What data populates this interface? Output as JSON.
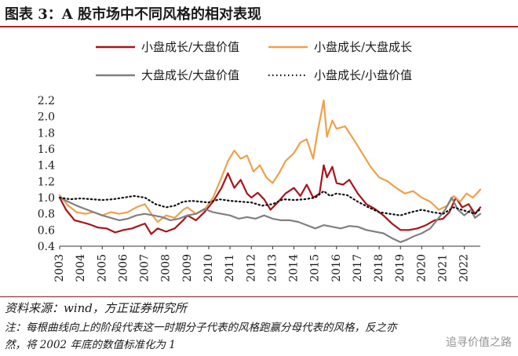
{
  "header": {
    "title": "图表 3：A 股市场中不同风格的相对表现"
  },
  "footer": {
    "source": "资料来源：wind，方正证券研究所",
    "note": "注：每根曲线向上的阶段代表这一时期分子代表的风格跑赢分母代表的风格，反之亦然，将 2002 年底的数值标准化为 1",
    "watermark": "追寻价值之路"
  },
  "chart_data": {
    "type": "line",
    "ylim": [
      0.4,
      2.2
    ],
    "yticks": [
      "2.2",
      "2.0",
      "1.8",
      "1.6",
      "1.4",
      "1.2",
      "1.0",
      "0.8",
      "0.6",
      "0.4"
    ],
    "xticks": [
      "2003",
      "2004",
      "2005",
      "2006",
      "2007",
      "2008",
      "2009",
      "2010",
      "2011",
      "2012",
      "2013",
      "2014",
      "2015",
      "2016",
      "2017",
      "2018",
      "2019",
      "2020",
      "2021",
      "2022"
    ],
    "x_start": 2003.0,
    "x_end": 2022.75,
    "legend_position": "top",
    "series": [
      {
        "name": "小盘成长/大盘价值",
        "color": "#a8141c",
        "style": "solid",
        "points": [
          [
            2003.0,
            1.0
          ],
          [
            2003.3,
            0.85
          ],
          [
            2003.7,
            0.72
          ],
          [
            2004.0,
            0.7
          ],
          [
            2004.4,
            0.67
          ],
          [
            2004.8,
            0.63
          ],
          [
            2005.2,
            0.62
          ],
          [
            2005.6,
            0.57
          ],
          [
            2006.0,
            0.6
          ],
          [
            2006.4,
            0.62
          ],
          [
            2006.8,
            0.66
          ],
          [
            2007.0,
            0.68
          ],
          [
            2007.3,
            0.55
          ],
          [
            2007.6,
            0.62
          ],
          [
            2008.0,
            0.58
          ],
          [
            2008.4,
            0.62
          ],
          [
            2008.8,
            0.72
          ],
          [
            2009.0,
            0.78
          ],
          [
            2009.4,
            0.72
          ],
          [
            2009.8,
            0.82
          ],
          [
            2010.2,
            0.95
          ],
          [
            2010.6,
            1.12
          ],
          [
            2010.9,
            1.3
          ],
          [
            2011.2,
            1.12
          ],
          [
            2011.5,
            1.22
          ],
          [
            2011.8,
            1.05
          ],
          [
            2012.0,
            1.0
          ],
          [
            2012.3,
            1.06
          ],
          [
            2012.6,
            0.98
          ],
          [
            2012.9,
            0.85
          ],
          [
            2013.2,
            0.93
          ],
          [
            2013.6,
            1.05
          ],
          [
            2014.0,
            1.12
          ],
          [
            2014.3,
            1.02
          ],
          [
            2014.6,
            1.16
          ],
          [
            2014.9,
            1.0
          ],
          [
            2015.2,
            1.05
          ],
          [
            2015.4,
            1.4
          ],
          [
            2015.55,
            1.25
          ],
          [
            2015.8,
            1.38
          ],
          [
            2016.0,
            1.18
          ],
          [
            2016.3,
            1.16
          ],
          [
            2016.6,
            1.22
          ],
          [
            2017.0,
            1.05
          ],
          [
            2017.4,
            0.92
          ],
          [
            2017.8,
            0.86
          ],
          [
            2018.2,
            0.78
          ],
          [
            2018.6,
            0.68
          ],
          [
            2019.0,
            0.6
          ],
          [
            2019.4,
            0.6
          ],
          [
            2019.8,
            0.62
          ],
          [
            2020.2,
            0.66
          ],
          [
            2020.6,
            0.72
          ],
          [
            2021.0,
            0.74
          ],
          [
            2021.3,
            0.82
          ],
          [
            2021.6,
            1.0
          ],
          [
            2021.9,
            0.88
          ],
          [
            2022.2,
            0.92
          ],
          [
            2022.5,
            0.8
          ],
          [
            2022.75,
            0.88
          ]
        ]
      },
      {
        "name": "小盘成长/大盘成长",
        "color": "#f0a04a",
        "style": "solid",
        "points": [
          [
            2003.0,
            1.03
          ],
          [
            2003.4,
            0.9
          ],
          [
            2003.8,
            0.82
          ],
          [
            2004.2,
            0.8
          ],
          [
            2004.6,
            0.82
          ],
          [
            2005.0,
            0.78
          ],
          [
            2005.4,
            0.82
          ],
          [
            2005.8,
            0.8
          ],
          [
            2006.2,
            0.82
          ],
          [
            2006.6,
            0.88
          ],
          [
            2007.0,
            0.92
          ],
          [
            2007.3,
            0.8
          ],
          [
            2007.6,
            0.7
          ],
          [
            2008.0,
            0.78
          ],
          [
            2008.4,
            0.75
          ],
          [
            2008.8,
            0.85
          ],
          [
            2009.0,
            0.88
          ],
          [
            2009.4,
            0.8
          ],
          [
            2009.8,
            0.85
          ],
          [
            2010.2,
            1.0
          ],
          [
            2010.6,
            1.25
          ],
          [
            2010.9,
            1.45
          ],
          [
            2011.2,
            1.58
          ],
          [
            2011.5,
            1.48
          ],
          [
            2011.8,
            1.52
          ],
          [
            2012.1,
            1.32
          ],
          [
            2012.4,
            1.4
          ],
          [
            2012.7,
            1.25
          ],
          [
            2013.0,
            1.18
          ],
          [
            2013.3,
            1.3
          ],
          [
            2013.6,
            1.45
          ],
          [
            2014.0,
            1.55
          ],
          [
            2014.3,
            1.68
          ],
          [
            2014.6,
            1.72
          ],
          [
            2014.9,
            1.48
          ],
          [
            2015.1,
            1.8
          ],
          [
            2015.4,
            2.2
          ],
          [
            2015.55,
            1.75
          ],
          [
            2015.8,
            1.95
          ],
          [
            2016.0,
            1.85
          ],
          [
            2016.4,
            1.88
          ],
          [
            2016.8,
            1.72
          ],
          [
            2017.2,
            1.55
          ],
          [
            2017.6,
            1.38
          ],
          [
            2018.0,
            1.25
          ],
          [
            2018.4,
            1.2
          ],
          [
            2018.8,
            1.12
          ],
          [
            2019.2,
            1.05
          ],
          [
            2019.6,
            1.08
          ],
          [
            2020.0,
            1.0
          ],
          [
            2020.4,
            0.95
          ],
          [
            2020.8,
            0.85
          ],
          [
            2021.2,
            0.9
          ],
          [
            2021.5,
            1.02
          ],
          [
            2021.8,
            0.95
          ],
          [
            2022.1,
            1.05
          ],
          [
            2022.4,
            1.0
          ],
          [
            2022.75,
            1.1
          ]
        ]
      },
      {
        "name": "大盘成长/大盘价值",
        "color": "#808080",
        "style": "solid",
        "points": [
          [
            2003.0,
            1.0
          ],
          [
            2003.4,
            0.95
          ],
          [
            2003.8,
            0.9
          ],
          [
            2004.2,
            0.86
          ],
          [
            2004.6,
            0.82
          ],
          [
            2005.0,
            0.78
          ],
          [
            2005.4,
            0.75
          ],
          [
            2005.8,
            0.72
          ],
          [
            2006.2,
            0.74
          ],
          [
            2006.6,
            0.78
          ],
          [
            2007.0,
            0.8
          ],
          [
            2007.4,
            0.78
          ],
          [
            2007.8,
            0.76
          ],
          [
            2008.2,
            0.72
          ],
          [
            2008.6,
            0.74
          ],
          [
            2009.0,
            0.78
          ],
          [
            2009.4,
            0.8
          ],
          [
            2009.8,
            0.86
          ],
          [
            2010.2,
            0.82
          ],
          [
            2010.6,
            0.8
          ],
          [
            2011.0,
            0.78
          ],
          [
            2011.4,
            0.74
          ],
          [
            2011.8,
            0.76
          ],
          [
            2012.2,
            0.74
          ],
          [
            2012.6,
            0.78
          ],
          [
            2013.0,
            0.74
          ],
          [
            2013.4,
            0.72
          ],
          [
            2013.8,
            0.72
          ],
          [
            2014.2,
            0.7
          ],
          [
            2014.6,
            0.66
          ],
          [
            2015.0,
            0.62
          ],
          [
            2015.4,
            0.66
          ],
          [
            2015.8,
            0.64
          ],
          [
            2016.2,
            0.62
          ],
          [
            2016.6,
            0.65
          ],
          [
            2017.0,
            0.64
          ],
          [
            2017.4,
            0.6
          ],
          [
            2017.8,
            0.58
          ],
          [
            2018.2,
            0.56
          ],
          [
            2018.6,
            0.5
          ],
          [
            2019.0,
            0.45
          ],
          [
            2019.3,
            0.48
          ],
          [
            2019.6,
            0.52
          ],
          [
            2020.0,
            0.56
          ],
          [
            2020.4,
            0.62
          ],
          [
            2020.8,
            0.75
          ],
          [
            2021.1,
            0.85
          ],
          [
            2021.4,
            1.0
          ],
          [
            2021.7,
            0.85
          ],
          [
            2022.0,
            0.78
          ],
          [
            2022.3,
            0.85
          ],
          [
            2022.5,
            0.75
          ],
          [
            2022.75,
            0.8
          ]
        ]
      },
      {
        "name": "小盘成长/小盘价值",
        "color": "#111111",
        "style": "dotted",
        "points": [
          [
            2003.0,
            1.0
          ],
          [
            2003.5,
            0.98
          ],
          [
            2004.0,
            0.99
          ],
          [
            2004.5,
            0.98
          ],
          [
            2005.0,
            0.97
          ],
          [
            2005.5,
            0.98
          ],
          [
            2006.0,
            1.0
          ],
          [
            2006.5,
            1.02
          ],
          [
            2007.0,
            1.0
          ],
          [
            2007.5,
            0.92
          ],
          [
            2008.0,
            0.88
          ],
          [
            2008.4,
            0.9
          ],
          [
            2008.8,
            0.95
          ],
          [
            2009.2,
            0.96
          ],
          [
            2009.6,
            0.95
          ],
          [
            2010.0,
            0.94
          ],
          [
            2010.5,
            0.98
          ],
          [
            2011.0,
            0.96
          ],
          [
            2011.5,
            0.95
          ],
          [
            2012.0,
            0.94
          ],
          [
            2012.5,
            0.9
          ],
          [
            2013.0,
            0.92
          ],
          [
            2013.5,
            0.98
          ],
          [
            2014.0,
            0.97
          ],
          [
            2014.5,
            0.98
          ],
          [
            2015.0,
            1.0
          ],
          [
            2015.4,
            1.08
          ],
          [
            2015.7,
            1.02
          ],
          [
            2016.0,
            1.05
          ],
          [
            2016.5,
            1.03
          ],
          [
            2017.0,
            0.95
          ],
          [
            2017.5,
            0.88
          ],
          [
            2018.0,
            0.82
          ],
          [
            2018.5,
            0.8
          ],
          [
            2019.0,
            0.78
          ],
          [
            2019.5,
            0.82
          ],
          [
            2020.0,
            0.85
          ],
          [
            2020.5,
            0.82
          ],
          [
            2021.0,
            0.8
          ],
          [
            2021.5,
            0.88
          ],
          [
            2022.0,
            0.84
          ],
          [
            2022.5,
            0.8
          ],
          [
            2022.75,
            0.86
          ]
        ]
      }
    ]
  }
}
